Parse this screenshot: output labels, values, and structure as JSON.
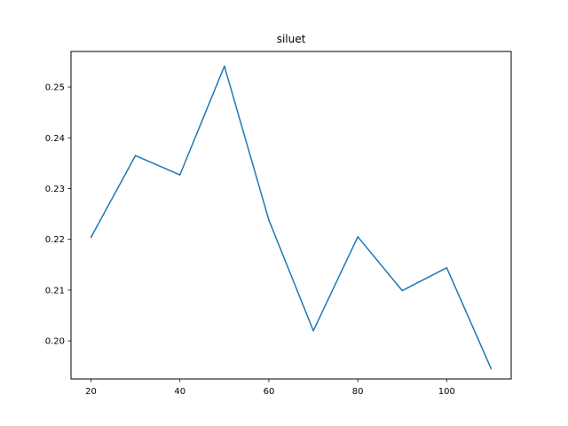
{
  "chart_data": {
    "type": "line",
    "title": "siluet",
    "xlabel": "",
    "ylabel": "",
    "xlim": [
      15.5,
      114.5
    ],
    "ylim": [
      0.1925,
      0.257
    ],
    "x_ticks": [
      20,
      40,
      60,
      80,
      100
    ],
    "x_tick_labels": [
      "20",
      "40",
      "60",
      "80",
      "100"
    ],
    "y_ticks": [
      0.2,
      0.21,
      0.22,
      0.23,
      0.24,
      0.25
    ],
    "y_tick_labels": [
      "0.20",
      "0.21",
      "0.22",
      "0.23",
      "0.24",
      "0.25"
    ],
    "grid": false,
    "series": [
      {
        "color": "#1f77b4",
        "x": [
          20,
          30,
          40,
          50,
          60,
          70,
          80,
          90,
          100,
          110
        ],
        "y": [
          0.2204,
          0.2365,
          0.2327,
          0.2541,
          0.2238,
          0.202,
          0.2205,
          0.2099,
          0.2144,
          0.1945
        ]
      }
    ]
  }
}
